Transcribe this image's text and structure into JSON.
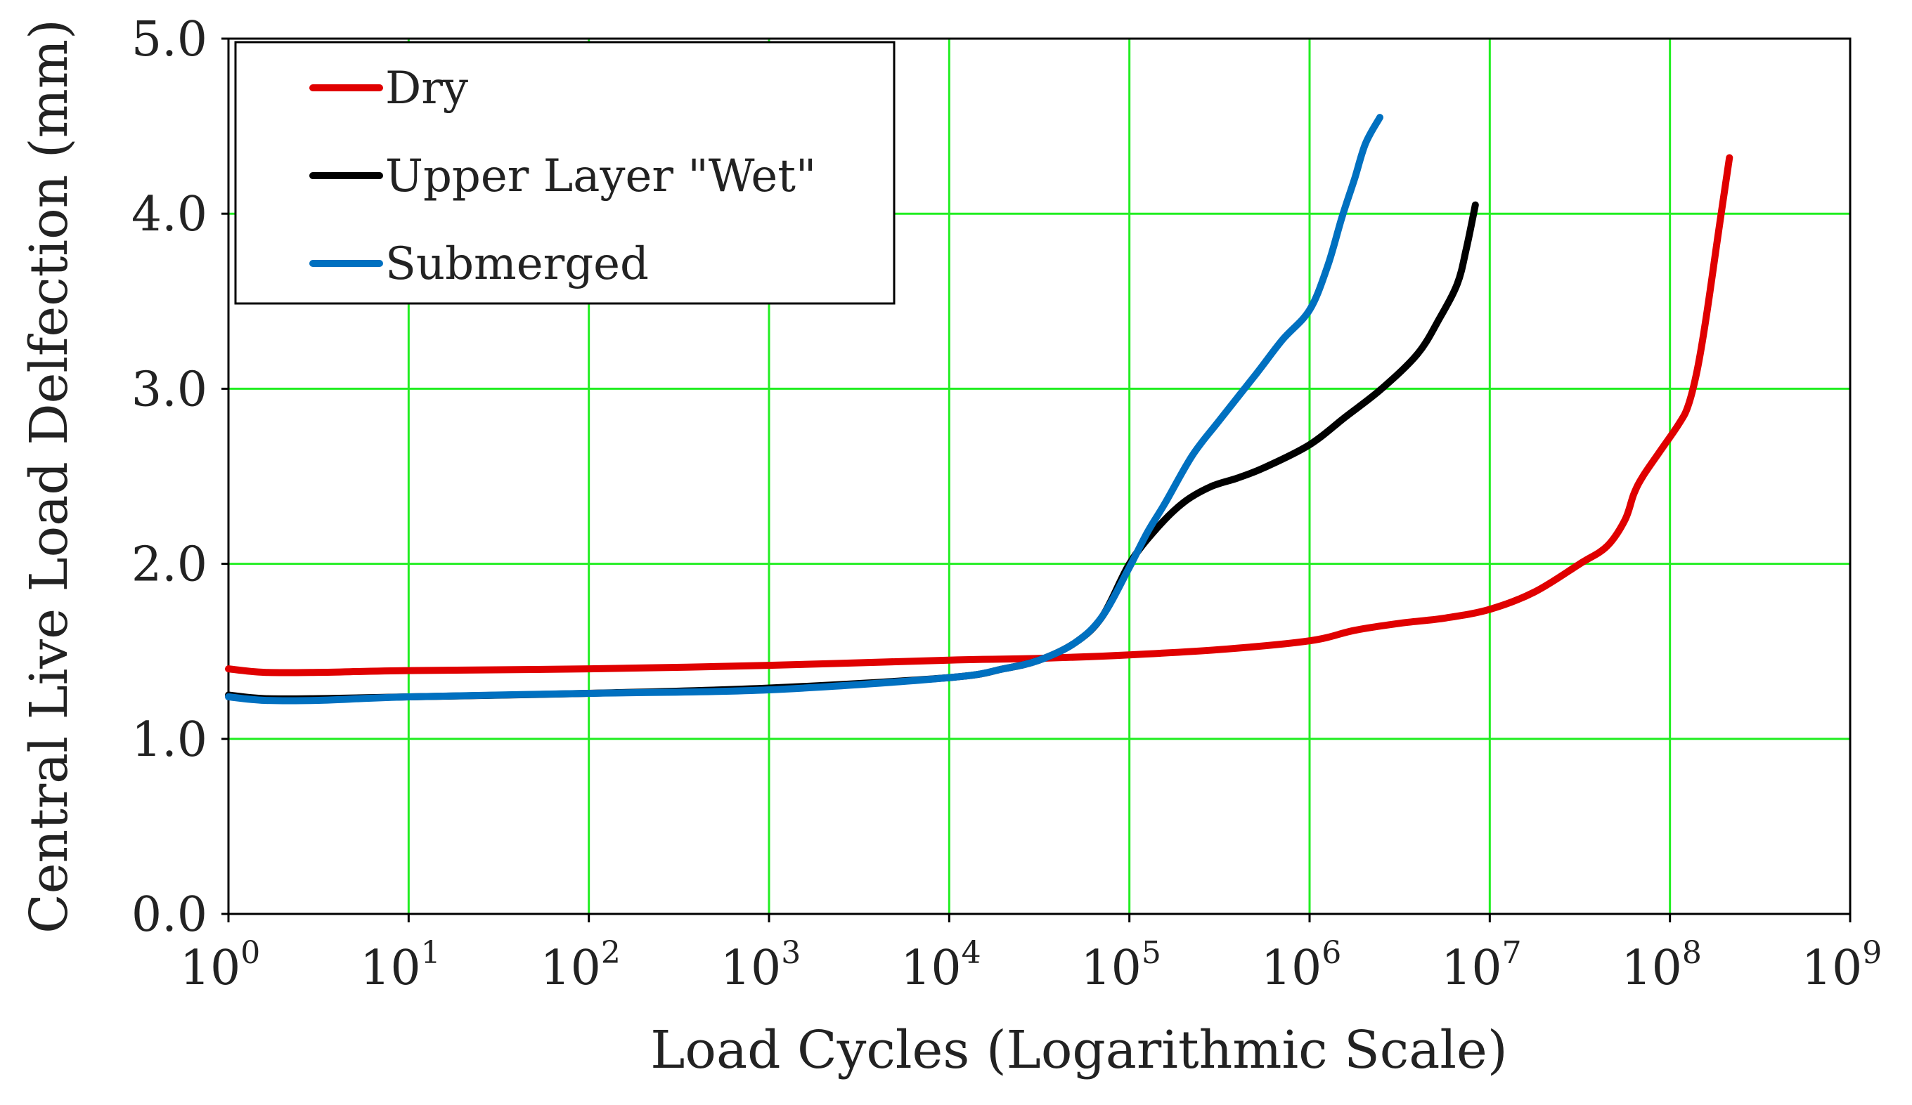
{
  "chart_data": {
    "type": "line",
    "title": "",
    "xlabel": "Load Cycles (Logarithmic Scale)",
    "ylabel": "Central Live Load Delfection (mm)",
    "xscale": "log",
    "xlim_exponent": [
      0,
      9
    ],
    "ylim": [
      0,
      5
    ],
    "grid": true,
    "legend_position": "top-left",
    "x_ticks": [
      {
        "base": "10",
        "exp": "0"
      },
      {
        "base": "10",
        "exp": "1"
      },
      {
        "base": "10",
        "exp": "2"
      },
      {
        "base": "10",
        "exp": "3"
      },
      {
        "base": "10",
        "exp": "4"
      },
      {
        "base": "10",
        "exp": "5"
      },
      {
        "base": "10",
        "exp": "6"
      },
      {
        "base": "10",
        "exp": "7"
      },
      {
        "base": "10",
        "exp": "8"
      },
      {
        "base": "10",
        "exp": "9"
      }
    ],
    "y_ticks": [
      "0.0",
      "1.0",
      "2.0",
      "3.0",
      "4.0",
      "5.0"
    ],
    "series": [
      {
        "name": "Dry",
        "color": "#e00000",
        "log10_x": [
          0,
          0.2,
          0.5,
          1,
          2,
          3,
          4,
          4.5,
          5,
          5.5,
          6,
          6.25,
          6.5,
          6.75,
          7,
          7.25,
          7.5,
          7.65,
          7.75,
          7.8,
          7.85,
          7.95,
          8.05,
          8.1,
          8.15,
          8.2,
          8.27,
          8.33
        ],
        "y": [
          1.4,
          1.38,
          1.38,
          1.39,
          1.4,
          1.42,
          1.45,
          1.46,
          1.48,
          1.51,
          1.56,
          1.62,
          1.66,
          1.69,
          1.74,
          1.84,
          2.0,
          2.1,
          2.25,
          2.4,
          2.5,
          2.65,
          2.8,
          2.9,
          3.1,
          3.4,
          3.9,
          4.32
        ]
      },
      {
        "name": "Upper Layer \"Wet\"",
        "color": "#000000",
        "log10_x": [
          0,
          0.2,
          0.5,
          1,
          2,
          3,
          4,
          4.3,
          4.5,
          4.7,
          4.85,
          5,
          5.15,
          5.3,
          5.45,
          5.6,
          5.75,
          6,
          6.2,
          6.4,
          6.6,
          6.72,
          6.82,
          6.87,
          6.92
        ],
        "y": [
          1.25,
          1.23,
          1.23,
          1.24,
          1.26,
          1.29,
          1.35,
          1.4,
          1.45,
          1.55,
          1.7,
          2.0,
          2.2,
          2.35,
          2.44,
          2.49,
          2.55,
          2.68,
          2.84,
          3.0,
          3.2,
          3.4,
          3.6,
          3.8,
          4.05
        ]
      },
      {
        "name": "Submerged",
        "color": "#0070c0",
        "log10_x": [
          0,
          0.2,
          0.5,
          1,
          2,
          3,
          4,
          4.3,
          4.5,
          4.7,
          4.85,
          5,
          5.1,
          5.2,
          5.35,
          5.5,
          5.7,
          5.85,
          6,
          6.1,
          6.18,
          6.25,
          6.31,
          6.39
        ],
        "y": [
          1.24,
          1.22,
          1.22,
          1.24,
          1.26,
          1.28,
          1.35,
          1.4,
          1.45,
          1.55,
          1.7,
          1.98,
          2.18,
          2.35,
          2.62,
          2.82,
          3.08,
          3.28,
          3.45,
          3.7,
          3.98,
          4.2,
          4.4,
          4.55
        ]
      }
    ]
  },
  "colors": {
    "grid": "#22ee22",
    "axis": "#000000"
  }
}
